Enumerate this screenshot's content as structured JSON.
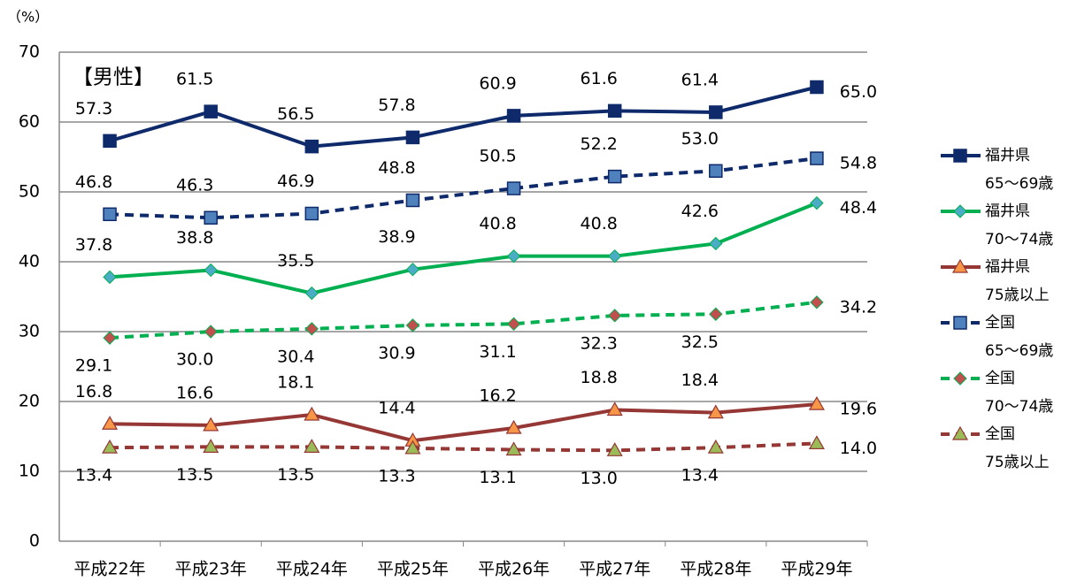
{
  "chart_data": {
    "type": "line",
    "y_label": "（%）",
    "annotation": "【男性】",
    "categories": [
      "平成22年",
      "平成23年",
      "平成24年",
      "平成25年",
      "平成26年",
      "平成27年",
      "平成28年",
      "平成29年"
    ],
    "ylim": [
      0,
      70
    ],
    "yticks": [
      0,
      10,
      20,
      30,
      40,
      50,
      60,
      70
    ],
    "grid": true,
    "series": [
      {
        "name": "福井県\n65〜69歳",
        "color": "#0e2a6a",
        "marker": "square",
        "marker_color": "#0e2a6a",
        "dashed": false,
        "label_pos": "above",
        "values": [
          57.3,
          61.5,
          56.5,
          57.8,
          60.9,
          61.6,
          61.4,
          65.0
        ],
        "value_labels": [
          "57.3",
          "61.5",
          "56.5",
          "57.8",
          "60.9",
          "61.6",
          "61.4",
          "65.0"
        ]
      },
      {
        "name": "福井県\n70〜74歳",
        "color": "#00b050",
        "marker": "diamond",
        "marker_color": "#4bacc6",
        "dashed": false,
        "label_pos": "above",
        "values": [
          37.8,
          38.8,
          35.5,
          38.9,
          40.8,
          40.8,
          42.6,
          48.4
        ],
        "value_labels": [
          "37.8",
          "38.8",
          "35.5",
          "38.9",
          "40.8",
          "40.8",
          "42.6",
          "48.4"
        ]
      },
      {
        "name": "福井県\n75歳以上",
        "color": "#953735",
        "marker": "triangle",
        "marker_color": "#f79646",
        "dashed": false,
        "label_pos": "above",
        "values": [
          16.8,
          16.6,
          18.1,
          14.4,
          16.2,
          18.8,
          18.4,
          19.6
        ],
        "value_labels": [
          "16.8",
          "16.6",
          "18.1",
          "14.4",
          "16.2",
          "18.8",
          "18.4",
          "19.6"
        ]
      },
      {
        "name": "全国\n65〜69歳",
        "color": "#0e2a6a",
        "marker": "square",
        "marker_color": "#4f81bd",
        "dashed": true,
        "label_pos": "above",
        "values": [
          46.8,
          46.3,
          46.9,
          48.8,
          50.5,
          52.2,
          53.0,
          54.8
        ],
        "value_labels": [
          "46.8",
          "46.3",
          "46.9",
          "48.8",
          "50.5",
          "52.2",
          "53.0",
          "54.8"
        ]
      },
      {
        "name": "全国\n70〜74歳",
        "color": "#00b050",
        "marker": "diamond",
        "marker_color": "#c0504d",
        "dashed": true,
        "label_pos": "below",
        "values": [
          29.1,
          30.0,
          30.4,
          30.9,
          31.1,
          32.3,
          32.5,
          34.2
        ],
        "value_labels": [
          "29.1",
          "30.0",
          "30.4",
          "30.9",
          "31.1",
          "32.3",
          "32.5",
          "34.2"
        ]
      },
      {
        "name": "全国\n75歳以上",
        "color": "#953735",
        "marker": "triangle",
        "marker_color": "#9bbb59",
        "dashed": true,
        "label_pos": "below",
        "values": [
          13.4,
          13.5,
          13.5,
          13.3,
          13.1,
          13.0,
          13.4,
          14.0
        ],
        "value_labels": [
          "13.4",
          "13.5",
          "13.5",
          "13.3",
          "13.1",
          "13.0",
          "13.4",
          "14.0"
        ]
      }
    ]
  }
}
